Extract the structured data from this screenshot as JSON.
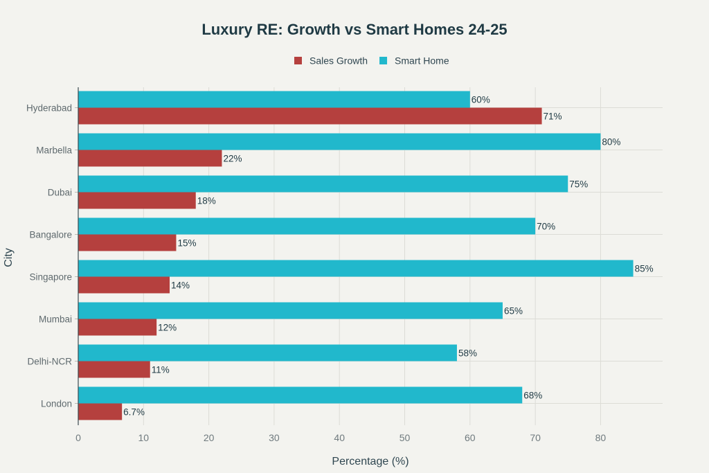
{
  "chart_data": {
    "type": "bar",
    "orientation": "horizontal",
    "title": "Luxury RE: Growth vs Smart Homes 24-25",
    "xlabel": "Percentage (%)",
    "ylabel": "City",
    "xlim": [
      0,
      89.5
    ],
    "xticks": [
      0,
      10,
      20,
      30,
      40,
      50,
      60,
      70,
      80
    ],
    "grid": true,
    "legend_position": "top-center",
    "categories": [
      "Hyderabad",
      "Marbella",
      "Dubai",
      "Bangalore",
      "Singapore",
      "Mumbai",
      "Delhi-NCR",
      "London"
    ],
    "series": [
      {
        "name": "Sales Growth",
        "color": "#b5403e",
        "values": [
          71,
          22,
          18,
          15,
          14,
          12,
          11,
          6.7
        ],
        "labels": [
          "71%",
          "22%",
          "18%",
          "15%",
          "14%",
          "12%",
          "11%",
          "6.7%"
        ]
      },
      {
        "name": "Smart Home",
        "color": "#21b8cc",
        "values": [
          60,
          80,
          75,
          70,
          85,
          65,
          58,
          68
        ],
        "labels": [
          "60%",
          "80%",
          "75%",
          "70%",
          "85%",
          "65%",
          "58%",
          "68%"
        ]
      }
    ]
  }
}
